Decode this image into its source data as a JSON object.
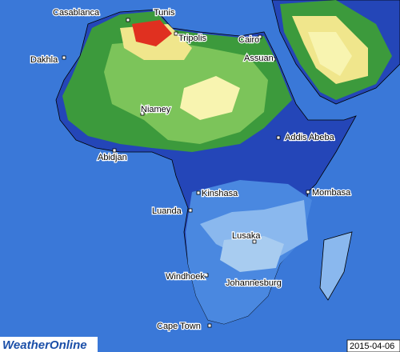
{
  "cities": [
    {
      "label": "Casablanca"
    },
    {
      "label": "Tunis"
    },
    {
      "label": "Tripolis"
    },
    {
      "label": "Cairo"
    },
    {
      "label": "Assuan"
    },
    {
      "label": "Dakhla"
    },
    {
      "label": "Niamey"
    },
    {
      "label": "Addis Abeba"
    },
    {
      "label": "Abidjan"
    },
    {
      "label": "Kinshasa"
    },
    {
      "label": "Mombasa"
    },
    {
      "label": "Luanda"
    },
    {
      "label": "Lusaka"
    },
    {
      "label": "Windhoek"
    },
    {
      "label": "Johannesburg"
    },
    {
      "label": "Cape Town"
    }
  ],
  "logo": {
    "text": "WeatherOnline"
  },
  "date": "2015-04-06"
}
